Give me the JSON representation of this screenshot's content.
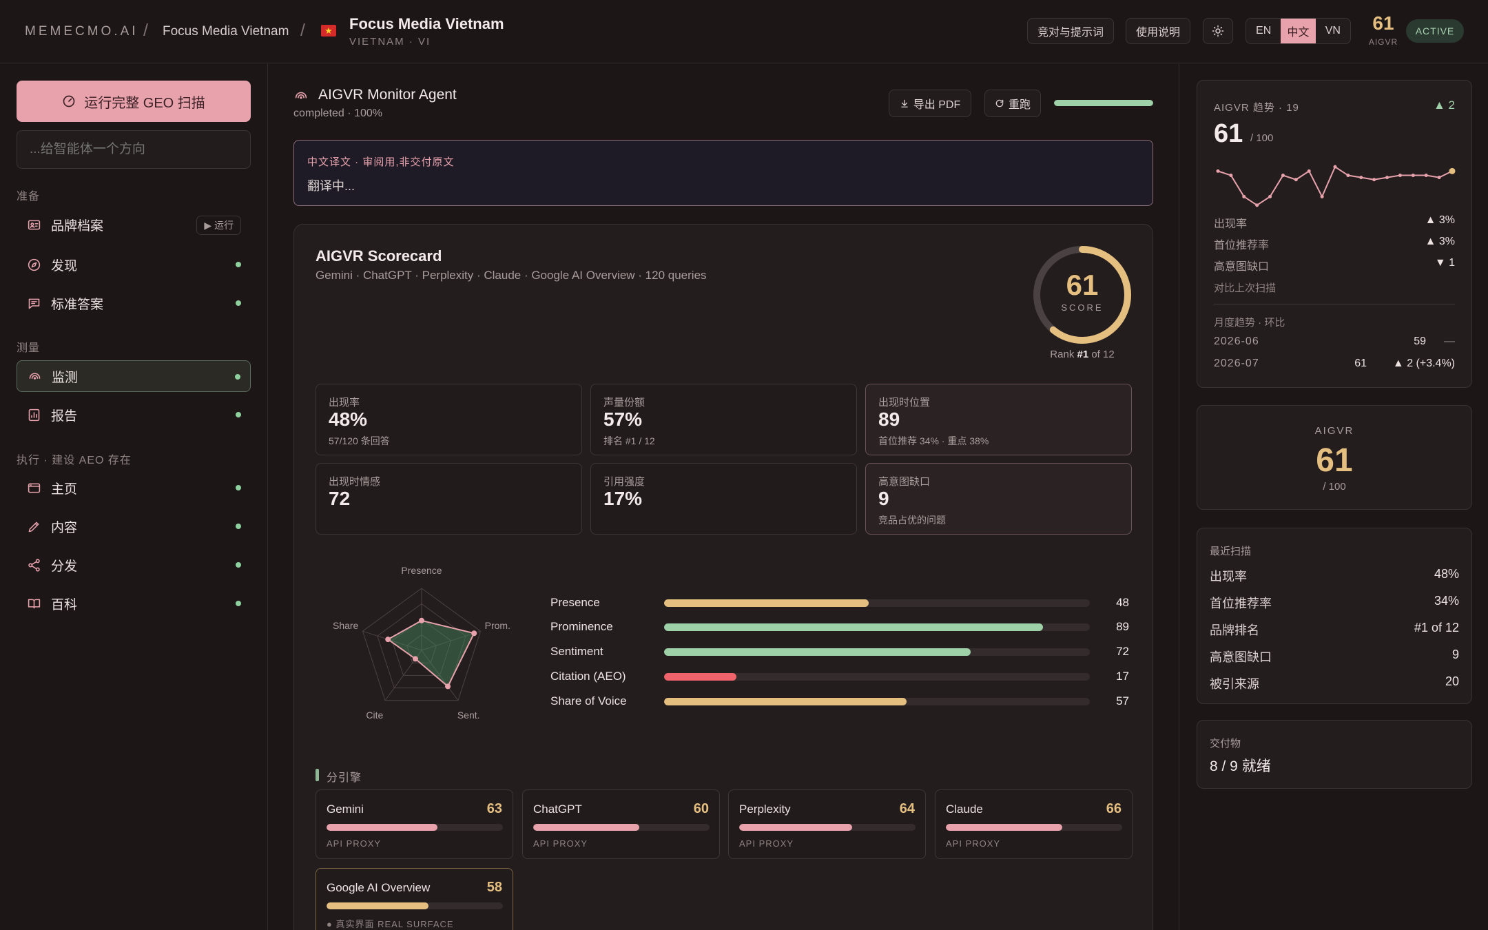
{
  "topbar": {
    "brand": "MEMECMO.AI",
    "sep": "/",
    "client": "Focus Media Vietnam",
    "flag": "★",
    "project_title": "Focus Media Vietnam",
    "project_sub": "VIETNAM · VI",
    "buttons": {
      "prompts": "竞对与提示词",
      "guide": "使用说明"
    },
    "languages": [
      "EN",
      "中文",
      "VN"
    ],
    "active_language": "中文",
    "score": "61",
    "score_label": "AIGVR",
    "status": "ACTIVE"
  },
  "sidebar": {
    "run_button": "运行完整 GEO 扫描",
    "agent_placeholder": "...给智能体一个方向",
    "sections": {
      "prepare": "准备",
      "measure": "测量",
      "execute": "执行 · 建设 AEO 存在"
    },
    "run_chip": "▶ 运行",
    "items": [
      {
        "label": "品牌档案"
      },
      {
        "label": "发现"
      },
      {
        "label": "标准答案"
      },
      {
        "label": "监测"
      },
      {
        "label": "报告"
      },
      {
        "label": "主页"
      },
      {
        "label": "内容"
      },
      {
        "label": "分发"
      },
      {
        "label": "百科"
      }
    ],
    "selected": "监测"
  },
  "agent": {
    "title": "AIGVR Monitor Agent",
    "status": "completed · 100%",
    "export_label": "导出 PDF",
    "rerun_label": "重跑",
    "progress": 1.0
  },
  "translation": {
    "label": "中文译文 · 审阅用,非交付原文",
    "text": "翻译中..."
  },
  "scorecard": {
    "title": "AIGVR Scorecard",
    "subtitle": "Gemini · ChatGPT · Perplexity · Claude · Google AI Overview · 120 queries",
    "score": "61",
    "score_value": 61,
    "score_label": "SCORE",
    "rank_prefix": "Rank ",
    "rank": "#1",
    "rank_suffix": " of 12",
    "metrics": [
      {
        "label": "出现率",
        "value": "48%",
        "sub": "57/120 条回答"
      },
      {
        "label": "声量份额",
        "value": "57%",
        "sub": "排名 #1 / 12"
      },
      {
        "label": "出现时位置",
        "value": "89",
        "sub": "首位推荐 34% · 重点 38%"
      },
      {
        "label": "出现时情感",
        "value": "72",
        "sub": ""
      },
      {
        "label": "引用强度",
        "value": "17%",
        "sub": ""
      },
      {
        "label": "高意图缺口",
        "value": "9",
        "sub": "竞品占优的问题"
      }
    ],
    "radar_axes": [
      "Presence",
      "Prom.",
      "Sent.",
      "Cite",
      "Share"
    ],
    "bars": [
      {
        "label": "Presence",
        "value": 48,
        "display": "48",
        "color": "#e5bf80"
      },
      {
        "label": "Prominence",
        "value": 89,
        "display": "89",
        "color": "#9fd1a8"
      },
      {
        "label": "Sentiment",
        "value": 72,
        "display": "72",
        "color": "#9fd1a8"
      },
      {
        "label": "Citation (AEO)",
        "value": 17,
        "display": "17",
        "color": "#f0636a"
      },
      {
        "label": "Share of Voice",
        "value": 57,
        "display": "57",
        "color": "#e5bf80"
      }
    ],
    "engines_label": "分引擎",
    "engines": [
      {
        "name": "Gemini",
        "score": "63",
        "value": 63,
        "tag": "API PROXY",
        "color": "#e8a2ac"
      },
      {
        "name": "ChatGPT",
        "score": "60",
        "value": 60,
        "tag": "API PROXY",
        "color": "#e8a2ac"
      },
      {
        "name": "Perplexity",
        "score": "64",
        "value": 64,
        "tag": "API PROXY",
        "color": "#e8a2ac"
      },
      {
        "name": "Claude",
        "score": "66",
        "value": 66,
        "tag": "API PROXY",
        "color": "#e8a2ac"
      },
      {
        "name": "Google AI Overview",
        "score": "58",
        "value": 58,
        "tag": "● 真实界面 REAL SURFACE",
        "color": "#e5bf80"
      }
    ]
  },
  "trend": {
    "title": "AIGVR 趋势 · 19",
    "delta": "▲ 2",
    "score": "61",
    "score_suffix": "/ 100",
    "sparkline": [
      61,
      60,
      55,
      53,
      55,
      60,
      59,
      61,
      55,
      62,
      60,
      59.5,
      59,
      59.5,
      60,
      60,
      60,
      59.5,
      61
    ],
    "rows": [
      {
        "label": "出现率",
        "value": "▲ 3%"
      },
      {
        "label": "首位推荐率",
        "value": "▲ 3%"
      },
      {
        "label": "高意图缺口",
        "value": "▼ 1"
      }
    ],
    "compare_note": "对比上次扫描",
    "monthly_label": "月度趋势 · 环比",
    "monthly": [
      {
        "month": "2026-06",
        "value": "59",
        "change": "—"
      },
      {
        "month": "2026-07",
        "value": "61",
        "change": "▲ 2 (+3.4%)"
      }
    ]
  },
  "aigvr_card": {
    "label": "AIGVR",
    "value": "61",
    "suffix": "/ 100"
  },
  "recent_scan": {
    "title": "最近扫描",
    "rows": [
      {
        "label": "出现率",
        "value": "48%"
      },
      {
        "label": "首位推荐率",
        "value": "34%"
      },
      {
        "label": "品牌排名",
        "value": "#1 of 12"
      },
      {
        "label": "高意图缺口",
        "value": "9"
      },
      {
        "label": "被引来源",
        "value": "20"
      }
    ]
  },
  "deliverables": {
    "title": "交付物",
    "value": "8 / 9 就绪"
  },
  "colors": {
    "accent": "#e8a2ac",
    "gold": "#e5bf80",
    "green": "#9fd1a8",
    "red": "#f0636a",
    "bg": "#1c1617"
  },
  "chart_data": [
    {
      "type": "radar",
      "categories": [
        "Presence",
        "Prom.",
        "Sent.",
        "Cite",
        "Share"
      ],
      "values": [
        48,
        89,
        72,
        17,
        57
      ],
      "rlim": [
        0,
        100
      ]
    },
    {
      "type": "bar",
      "orientation": "horizontal",
      "categories": [
        "Presence",
        "Prominence",
        "Sentiment",
        "Citation (AEO)",
        "Share of Voice"
      ],
      "values": [
        48,
        89,
        72,
        17,
        57
      ],
      "xlim": [
        0,
        100
      ]
    },
    {
      "type": "line",
      "title": "AIGVR 趋势 · 19",
      "values": [
        61,
        60,
        55,
        53,
        55,
        60,
        59,
        61,
        55,
        62,
        60,
        59.5,
        59,
        59.5,
        60,
        60,
        60,
        59.5,
        61
      ]
    }
  ]
}
